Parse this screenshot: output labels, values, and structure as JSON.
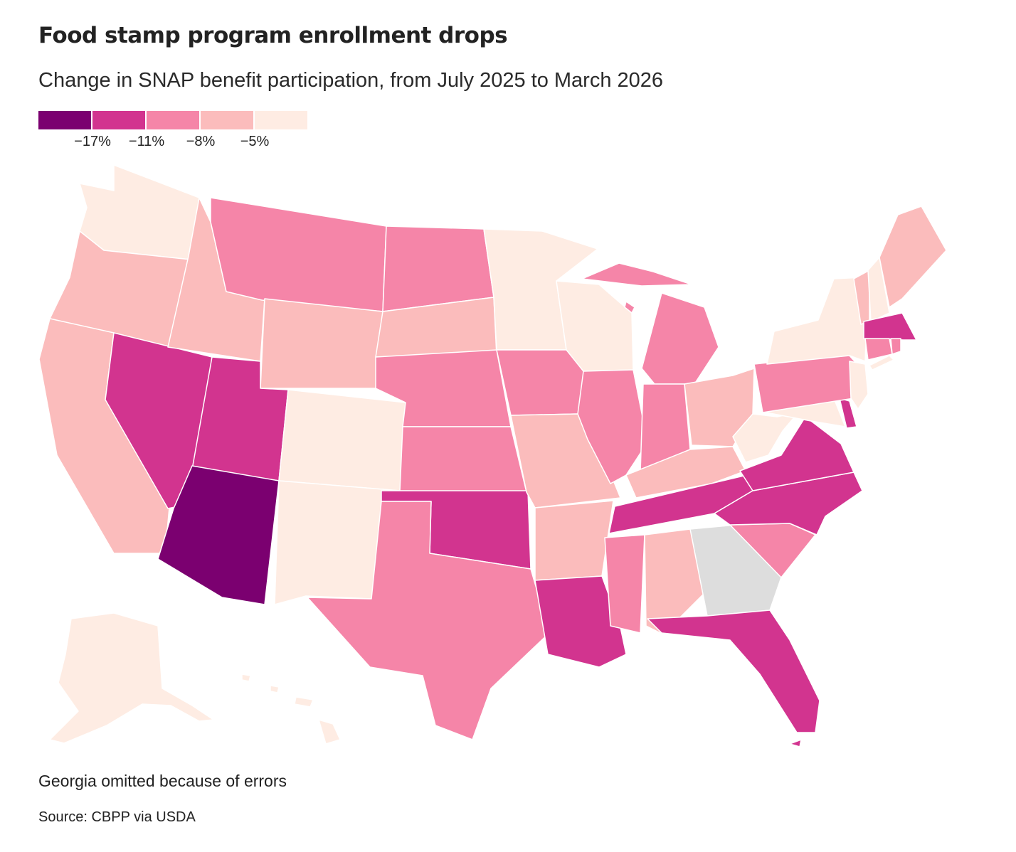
{
  "title": "Food stamp program enrollment drops",
  "subtitle": "Change in SNAP benefit participation, from July 2025 to March 2026",
  "legend": {
    "colors": [
      "#7b0070",
      "#d2348f",
      "#f585a8",
      "#fbbcbc",
      "#feece3"
    ],
    "ticks": [
      "−17%",
      "−11%",
      "−8%",
      "−5%"
    ]
  },
  "no_data_color": "#dddddd",
  "note": "Georgia omitted because of errors",
  "source": "Source: CBPP via USDA",
  "map_data": {
    "type": "choropleth",
    "bins": [
      "below -17%",
      "-17% to -11%",
      "-11% to -8%",
      "-8% to -5%",
      "above -5%"
    ],
    "states": {
      "WA": 4,
      "OR": 3,
      "CA": 3,
      "NV": 1,
      "ID": 3,
      "MT": 2,
      "WY": 3,
      "UT": 1,
      "AZ": 0,
      "CO": 4,
      "NM": 4,
      "ND": 2,
      "SD": 3,
      "NE": 2,
      "KS": 2,
      "OK": 1,
      "TX": 2,
      "MN": 4,
      "IA": 2,
      "MO": 3,
      "AR": 3,
      "LA": 1,
      "WI": 4,
      "IL": 2,
      "MI": 2,
      "IN": 2,
      "OH": 3,
      "KY": 3,
      "TN": 1,
      "MS": 2,
      "AL": 3,
      "GA": null,
      "FL": 1,
      "SC": 2,
      "NC": 1,
      "VA": 1,
      "WV": 4,
      "MD": 4,
      "DE": 1,
      "NJ": 4,
      "PA": 2,
      "NY": 4,
      "VT": 3,
      "NH": 4,
      "ME": 3,
      "MA": 1,
      "CT": 2,
      "RI": 2,
      "DC": 1,
      "AK": 4,
      "HI": 4
    }
  }
}
